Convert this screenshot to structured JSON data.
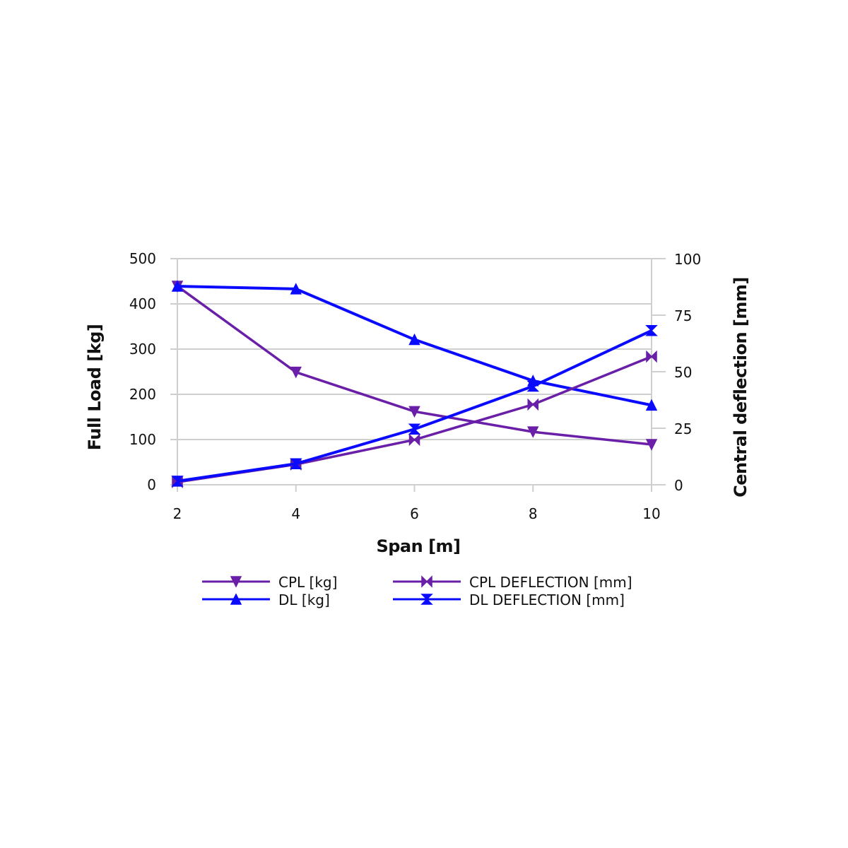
{
  "chart_data": {
    "type": "line",
    "title": "",
    "xlabel": "Span [m]",
    "ylabel": "Full Load [kg]",
    "y2label": "Central deflection [mm]",
    "x": [
      2,
      4,
      6,
      8,
      10
    ],
    "xticks": [
      "2",
      "4",
      "6",
      "8",
      "10"
    ],
    "ylim": [
      0,
      500
    ],
    "yticks": [
      "0",
      "100",
      "200",
      "300",
      "400",
      "500"
    ],
    "y2lim": [
      0,
      100
    ],
    "y2ticks": [
      "0",
      "25",
      "50",
      "75",
      "100"
    ],
    "grid": true,
    "legend_position": "bottom",
    "series": [
      {
        "name": "CPL [kg]",
        "axis": "left",
        "color": "#6a1fa8",
        "marker": "triangle-down",
        "values": [
          439,
          249,
          162,
          117,
          89
        ]
      },
      {
        "name": "DL [kg]",
        "axis": "left",
        "color": "#0a0aff",
        "marker": "triangle-up",
        "values": [
          439,
          433,
          321,
          230,
          176
        ]
      },
      {
        "name": "CPL DEFLECTION [mm]",
        "axis": "right",
        "color": "#6a1fa8",
        "marker": "bowtie",
        "values": [
          1.2,
          9.0,
          19.9,
          35.5,
          56.7
        ]
      },
      {
        "name": "DL DEFLECTION [mm]",
        "axis": "right",
        "color": "#0a0aff",
        "marker": "hourglass",
        "values": [
          1.6,
          9.3,
          24.6,
          43.6,
          68.2
        ]
      }
    ]
  }
}
